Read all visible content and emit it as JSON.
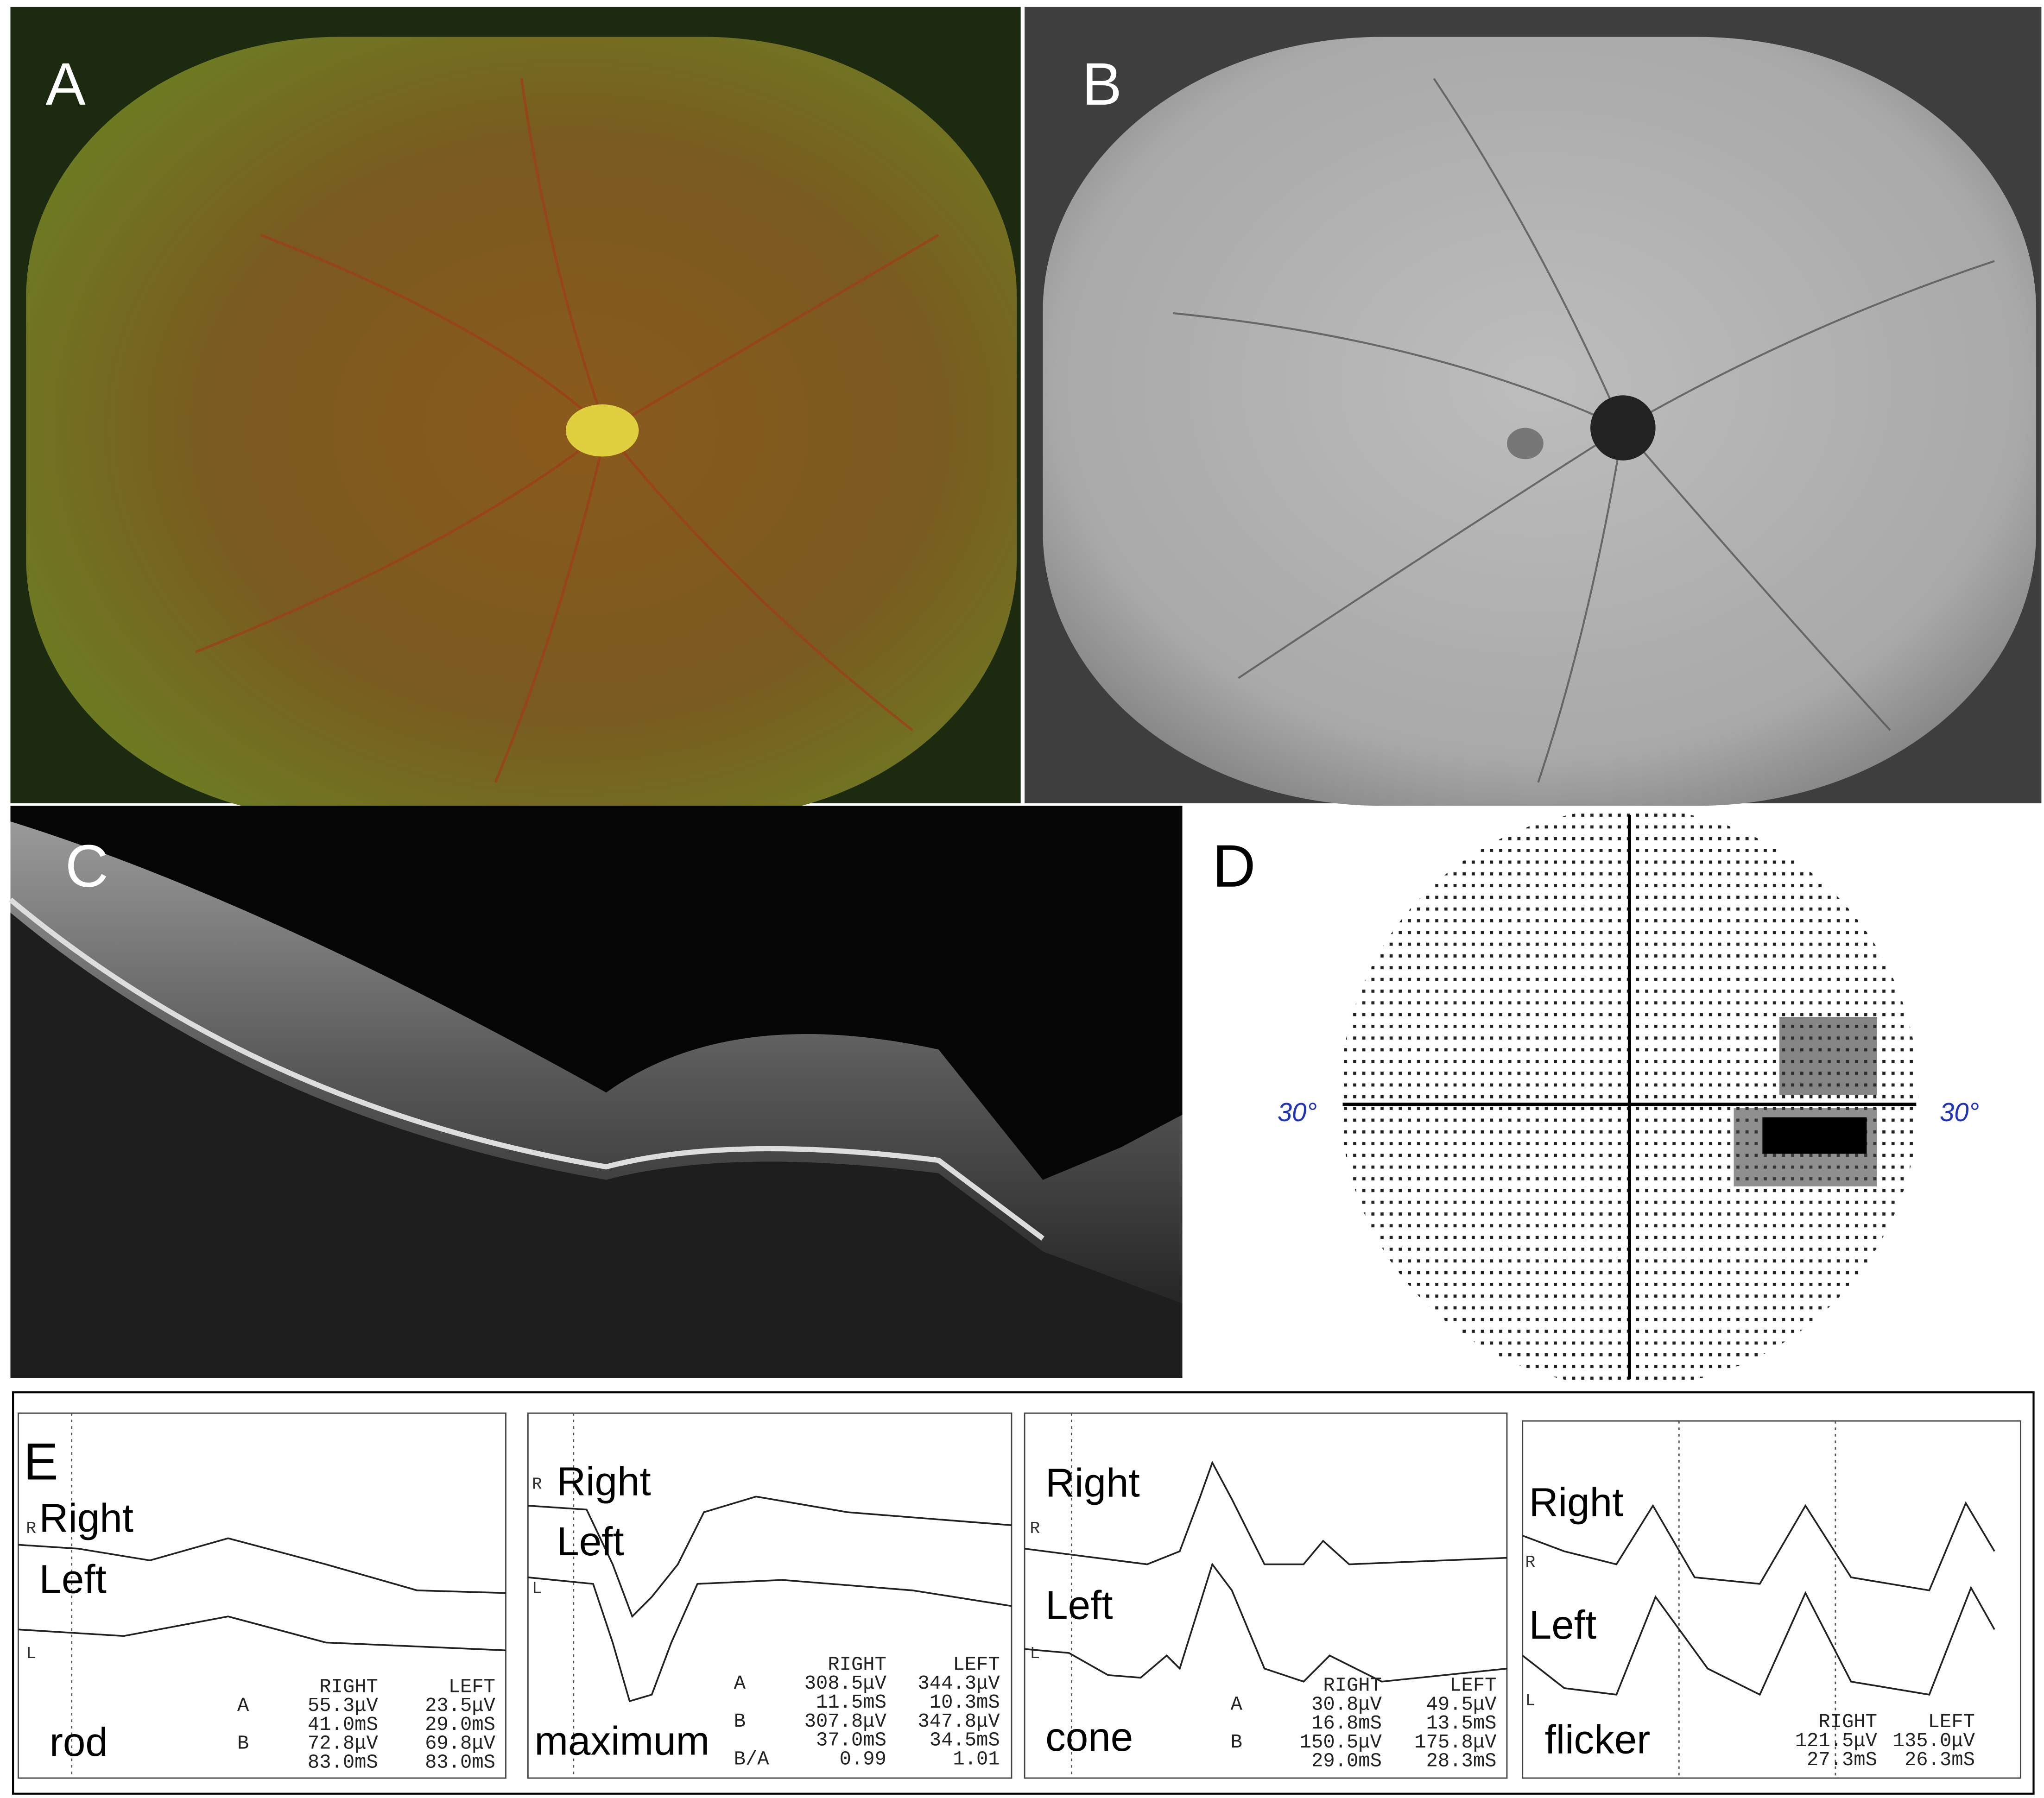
{
  "panel_labels": [
    "A",
    "B",
    "C",
    "D",
    "E"
  ],
  "visual_field": {
    "left_label": "30°",
    "right_label": "30°"
  },
  "erg": [
    {
      "name": "rod",
      "trace_labels": [
        "Right",
        "Left"
      ],
      "axis_letters": [
        "R",
        "L"
      ],
      "table": {
        "header": [
          "RIGHT",
          "LEFT"
        ],
        "rows": [
          {
            "label": "A",
            "right": [
              "55.3μV",
              "41.0mS"
            ],
            "left": [
              "23.5μV",
              "29.0mS"
            ]
          },
          {
            "label": "B",
            "right": [
              "72.8μV",
              "83.0mS"
            ],
            "left": [
              "69.8μV",
              "83.0mS"
            ]
          }
        ]
      }
    },
    {
      "name": "maximum",
      "trace_labels": [
        "Right",
        "Left"
      ],
      "axis_letters": [
        "R",
        "L"
      ],
      "table": {
        "header": [
          "RIGHT",
          "LEFT"
        ],
        "rows": [
          {
            "label": "A",
            "right": [
              "308.5μV",
              "11.5mS"
            ],
            "left": [
              "344.3μV",
              "10.3mS"
            ]
          },
          {
            "label": "B",
            "right": [
              "307.8μV",
              "37.0mS"
            ],
            "left": [
              "347.8μV",
              "34.5mS"
            ]
          },
          {
            "label": "B/A",
            "right": [
              "0.99"
            ],
            "left": [
              "1.01"
            ]
          }
        ]
      }
    },
    {
      "name": "cone",
      "trace_labels": [
        "Right",
        "Left"
      ],
      "axis_letters": [
        "R",
        "L"
      ],
      "table": {
        "header": [
          "RIGHT",
          "LEFT"
        ],
        "rows": [
          {
            "label": "A",
            "right": [
              "30.8μV",
              "16.8mS"
            ],
            "left": [
              "49.5μV",
              "13.5mS"
            ]
          },
          {
            "label": "B",
            "right": [
              "150.5μV",
              "29.0mS"
            ],
            "left": [
              "175.8μV",
              "28.3mS"
            ]
          }
        ]
      }
    },
    {
      "name": "flicker",
      "trace_labels": [
        "Right",
        "Left"
      ],
      "axis_letters": [
        "R",
        "L"
      ],
      "table": {
        "header": [
          "RIGHT",
          "LEFT"
        ],
        "rows": [
          {
            "right": [
              "121.5μV",
              "27.3mS"
            ],
            "left": [
              "135.0μV",
              "26.3mS"
            ]
          }
        ]
      }
    }
  ]
}
